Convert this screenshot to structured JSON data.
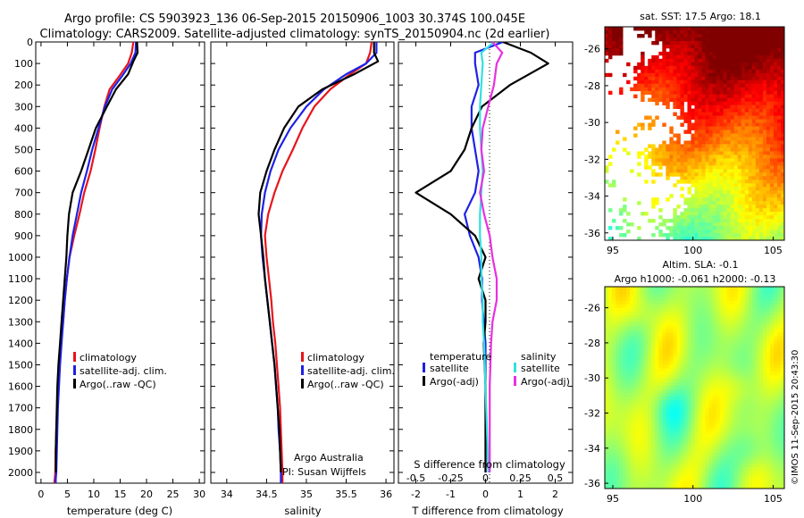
{
  "header": {
    "line1": "Argo profile: CS 5903923_136 06-Sep-2015 20150906_1003 30.374S 100.045E",
    "line2": "Climatology: CARS2009. Satellite-adjusted climatology: synTS_20150904.nc (2d earlier)"
  },
  "colors": {
    "climatology": "#e8141c",
    "satellite": "#1d21e6",
    "argo": "#000000",
    "cyan": "#33e0e0",
    "magenta": "#e830e0"
  },
  "chart_data": [
    {
      "type": "line",
      "id": "temperature",
      "xlabel": "temperature (deg C)",
      "ylabel": "",
      "xlim": [
        -1,
        31
      ],
      "ylim": [
        2050,
        0
      ],
      "xticks": [
        0,
        5,
        10,
        15,
        20,
        25,
        30
      ],
      "yticks": [
        0,
        100,
        200,
        300,
        400,
        500,
        600,
        700,
        800,
        900,
        1000,
        1100,
        1200,
        1300,
        1400,
        1500,
        1600,
        1700,
        1800,
        1900,
        2000
      ],
      "legend": [
        "climatology",
        "satellite-adj. clim.",
        "Argo(..raw -QC)"
      ],
      "legend_position": "center",
      "series": [
        {
          "name": "climatology",
          "color": "#e8141c",
          "x": [
            17.5,
            17.2,
            16.5,
            14.8,
            13,
            12,
            11.1,
            10.3,
            9.4,
            8.2,
            7.3,
            6.3,
            5.4,
            4.9,
            4.5,
            4.2,
            3.8,
            3.5,
            3.3,
            3.1,
            2.9,
            2.8,
            2.7,
            2.6,
            2.5
          ],
          "y": [
            0,
            50,
            100,
            160,
            220,
            300,
            400,
            500,
            600,
            700,
            800,
            900,
            1000,
            1100,
            1200,
            1300,
            1400,
            1500,
            1600,
            1700,
            1800,
            1900,
            2000,
            2030,
            2050
          ]
        },
        {
          "name": "satellite-adj. clim.",
          "color": "#1d21e6",
          "x": [
            18,
            17.9,
            17,
            15.3,
            13.5,
            12.1,
            10.9,
            9.7,
            8.7,
            7.6,
            6.8,
            6,
            5.4,
            4.9,
            4.5,
            4.2,
            3.9,
            3.6,
            3.4,
            3.2,
            3.1,
            3,
            2.9,
            2.8,
            2.8
          ],
          "y": [
            0,
            50,
            100,
            160,
            220,
            300,
            400,
            500,
            600,
            700,
            800,
            900,
            1000,
            1100,
            1200,
            1300,
            1400,
            1500,
            1600,
            1700,
            1800,
            1900,
            2000,
            2030,
            2050
          ]
        },
        {
          "name": "Argo(..raw -QC)",
          "color": "#000000",
          "x": [
            18.2,
            18.3,
            17.5,
            16.5,
            14.2,
            12.5,
            10.4,
            9,
            7.6,
            6,
            5.3,
            5,
            4.8,
            4.5,
            4.2,
            3.9,
            3.6,
            3.3,
            3.1,
            3,
            2.9,
            2.8,
            2.8
          ],
          "y": [
            0,
            50,
            90,
            150,
            220,
            300,
            400,
            500,
            600,
            700,
            800,
            900,
            1000,
            1100,
            1200,
            1300,
            1400,
            1500,
            1600,
            1700,
            1800,
            1900,
            2000
          ]
        }
      ]
    },
    {
      "type": "line",
      "id": "salinity",
      "xlabel": "salinity",
      "ylabel": "",
      "xlim": [
        33.8,
        36.1
      ],
      "ylim": [
        2050,
        0
      ],
      "xticks": [
        34,
        34.5,
        35,
        35.5,
        36
      ],
      "xtick_labels": [
        "34",
        "34.5",
        "35",
        "35.5",
        "36"
      ],
      "legend": [
        "climatology",
        "satellite-adj. clim.",
        "Argo(..raw -QC)"
      ],
      "legend_position": "center",
      "annotation": [
        "Argo Australia",
        "PI: Susan Wijffels"
      ],
      "series": [
        {
          "name": "climatology",
          "color": "#e8141c",
          "x": [
            35.82,
            35.8,
            35.75,
            35.55,
            35.3,
            35.1,
            34.95,
            34.83,
            34.7,
            34.6,
            34.52,
            34.48,
            34.5,
            34.53,
            34.56,
            34.58,
            34.61,
            34.63,
            34.65,
            34.67,
            34.68,
            34.69,
            34.7,
            34.7
          ],
          "y": [
            0,
            50,
            100,
            150,
            220,
            300,
            400,
            500,
            600,
            700,
            800,
            900,
            1000,
            1100,
            1200,
            1300,
            1400,
            1500,
            1600,
            1700,
            1800,
            1900,
            2000,
            2050
          ]
        },
        {
          "name": "satellite-adj. clim.",
          "color": "#1d21e6",
          "x": [
            35.88,
            35.88,
            35.75,
            35.5,
            35.22,
            35,
            34.8,
            34.65,
            34.55,
            34.48,
            34.44,
            34.43,
            34.45,
            34.48,
            34.51,
            34.54,
            34.57,
            34.6,
            34.62,
            34.64,
            34.65,
            34.67,
            34.68,
            34.68
          ],
          "y": [
            0,
            50,
            100,
            150,
            220,
            300,
            400,
            500,
            600,
            700,
            800,
            900,
            1000,
            1100,
            1200,
            1300,
            1400,
            1500,
            1600,
            1700,
            1800,
            1900,
            2000,
            2050
          ]
        },
        {
          "name": "Argo(..raw -QC)",
          "color": "#000000",
          "x": [
            35.85,
            35.85,
            35.9,
            35.6,
            35.2,
            34.9,
            34.72,
            34.6,
            34.5,
            34.42,
            34.4,
            34.43,
            34.46,
            34.48,
            34.51,
            34.54,
            34.57,
            34.6,
            34.62,
            34.64,
            34.66,
            34.67,
            34.68
          ],
          "y": [
            0,
            50,
            90,
            150,
            220,
            300,
            400,
            500,
            600,
            700,
            800,
            900,
            1000,
            1100,
            1200,
            1300,
            1400,
            1500,
            1600,
            1700,
            1800,
            1900,
            2000
          ]
        }
      ]
    },
    {
      "type": "line",
      "id": "difference",
      "xlabel": "T difference from climatology",
      "xlabel_top": "S difference from climatology",
      "xlim": [
        -2.5,
        2.5
      ],
      "ylim": [
        2050,
        0
      ],
      "xticks": [
        -2,
        -1,
        0,
        1,
        2
      ],
      "xticks_top": [
        -0.5,
        -0.25,
        0,
        0.25,
        0.5
      ],
      "legend_headers": [
        "temperature",
        "salinity"
      ],
      "legend": [
        "satellite",
        "Argo(-adj)",
        "satellite",
        "Argo(-adj)"
      ],
      "legend_position": "bottom",
      "series": [
        {
          "name": "satellite",
          "group": "temperature",
          "color": "#1d21e6",
          "x": [
            0.5,
            -0.3,
            -0.3,
            -0.2,
            -0.4,
            -0.4,
            -0.3,
            -0.2,
            -0.3,
            -0.6,
            -0.45,
            -0.2,
            -0.1,
            -0.1,
            -0.05,
            0,
            0,
            0
          ],
          "y": [
            0,
            50,
            100,
            200,
            300,
            400,
            500,
            600,
            700,
            800,
            900,
            1000,
            1100,
            1200,
            1300,
            1400,
            1600,
            2000
          ]
        },
        {
          "name": "Argo(-adj)",
          "group": "temperature",
          "color": "#000000",
          "x": [
            0.5,
            1.3,
            1.8,
            0.7,
            -0.1,
            -0.4,
            -0.6,
            -1,
            -2,
            -1,
            -0.3,
            0,
            -0.2,
            0,
            0,
            -0.05,
            0,
            0
          ],
          "y": [
            0,
            50,
            100,
            200,
            300,
            400,
            500,
            600,
            700,
            800,
            900,
            1000,
            1100,
            1200,
            1300,
            1400,
            1600,
            2000
          ]
        },
        {
          "name": "satellite",
          "group": "salinity",
          "color": "#33e0e0",
          "x": [
            0.06,
            -0.03,
            -0.02,
            -0.03,
            -0.04,
            -0.04,
            -0.03,
            -0.02,
            -0.03,
            -0.04,
            -0.04,
            -0.03,
            -0.03,
            -0.02,
            -0.02,
            -0.01,
            0,
            0.01,
            0.02
          ],
          "y": [
            0,
            50,
            100,
            200,
            300,
            400,
            500,
            600,
            700,
            800,
            900,
            1000,
            1100,
            1200,
            1300,
            1400,
            1600,
            1800,
            2000
          ]
        },
        {
          "name": "Argo(-adj)",
          "group": "salinity",
          "color": "#e830e0",
          "x": [
            0.05,
            0.12,
            0.08,
            0.06,
            0.02,
            -0.02,
            -0.03,
            -0.01,
            -0.04,
            -0.01,
            0.03,
            0.05,
            0.08,
            0.08,
            0.05,
            0.04,
            0.03,
            0.03,
            0.03
          ],
          "y": [
            0,
            50,
            100,
            200,
            300,
            400,
            500,
            600,
            700,
            800,
            900,
            1000,
            1100,
            1200,
            1300,
            1400,
            1600,
            1800,
            2000
          ]
        }
      ]
    },
    {
      "type": "heatmap",
      "id": "sst-map",
      "title": "sat. SST: 17.5 Argo: 18.1",
      "xlim": [
        94.5,
        105.7
      ],
      "ylim": [
        -36.4,
        -24.8
      ],
      "xticks": [
        95,
        100,
        105
      ],
      "yticks": [
        -26,
        -28,
        -30,
        -32,
        -34,
        -36
      ],
      "colorscale": "jet"
    },
    {
      "type": "heatmap",
      "id": "sla-map",
      "title_lines": [
        "Altim. SLA: -0.1",
        "Argo h1000: -0.061 h2000: -0.13"
      ],
      "xlim": [
        94.5,
        105.7
      ],
      "ylim": [
        -36.3,
        -24.8
      ],
      "xticks": [
        95,
        100,
        105
      ],
      "yticks": [
        -26,
        -28,
        -30,
        -32,
        -34,
        -36
      ],
      "colorscale": "jet"
    }
  ],
  "stamp": "©IMOS 11-Sep-2015 20:43:30"
}
